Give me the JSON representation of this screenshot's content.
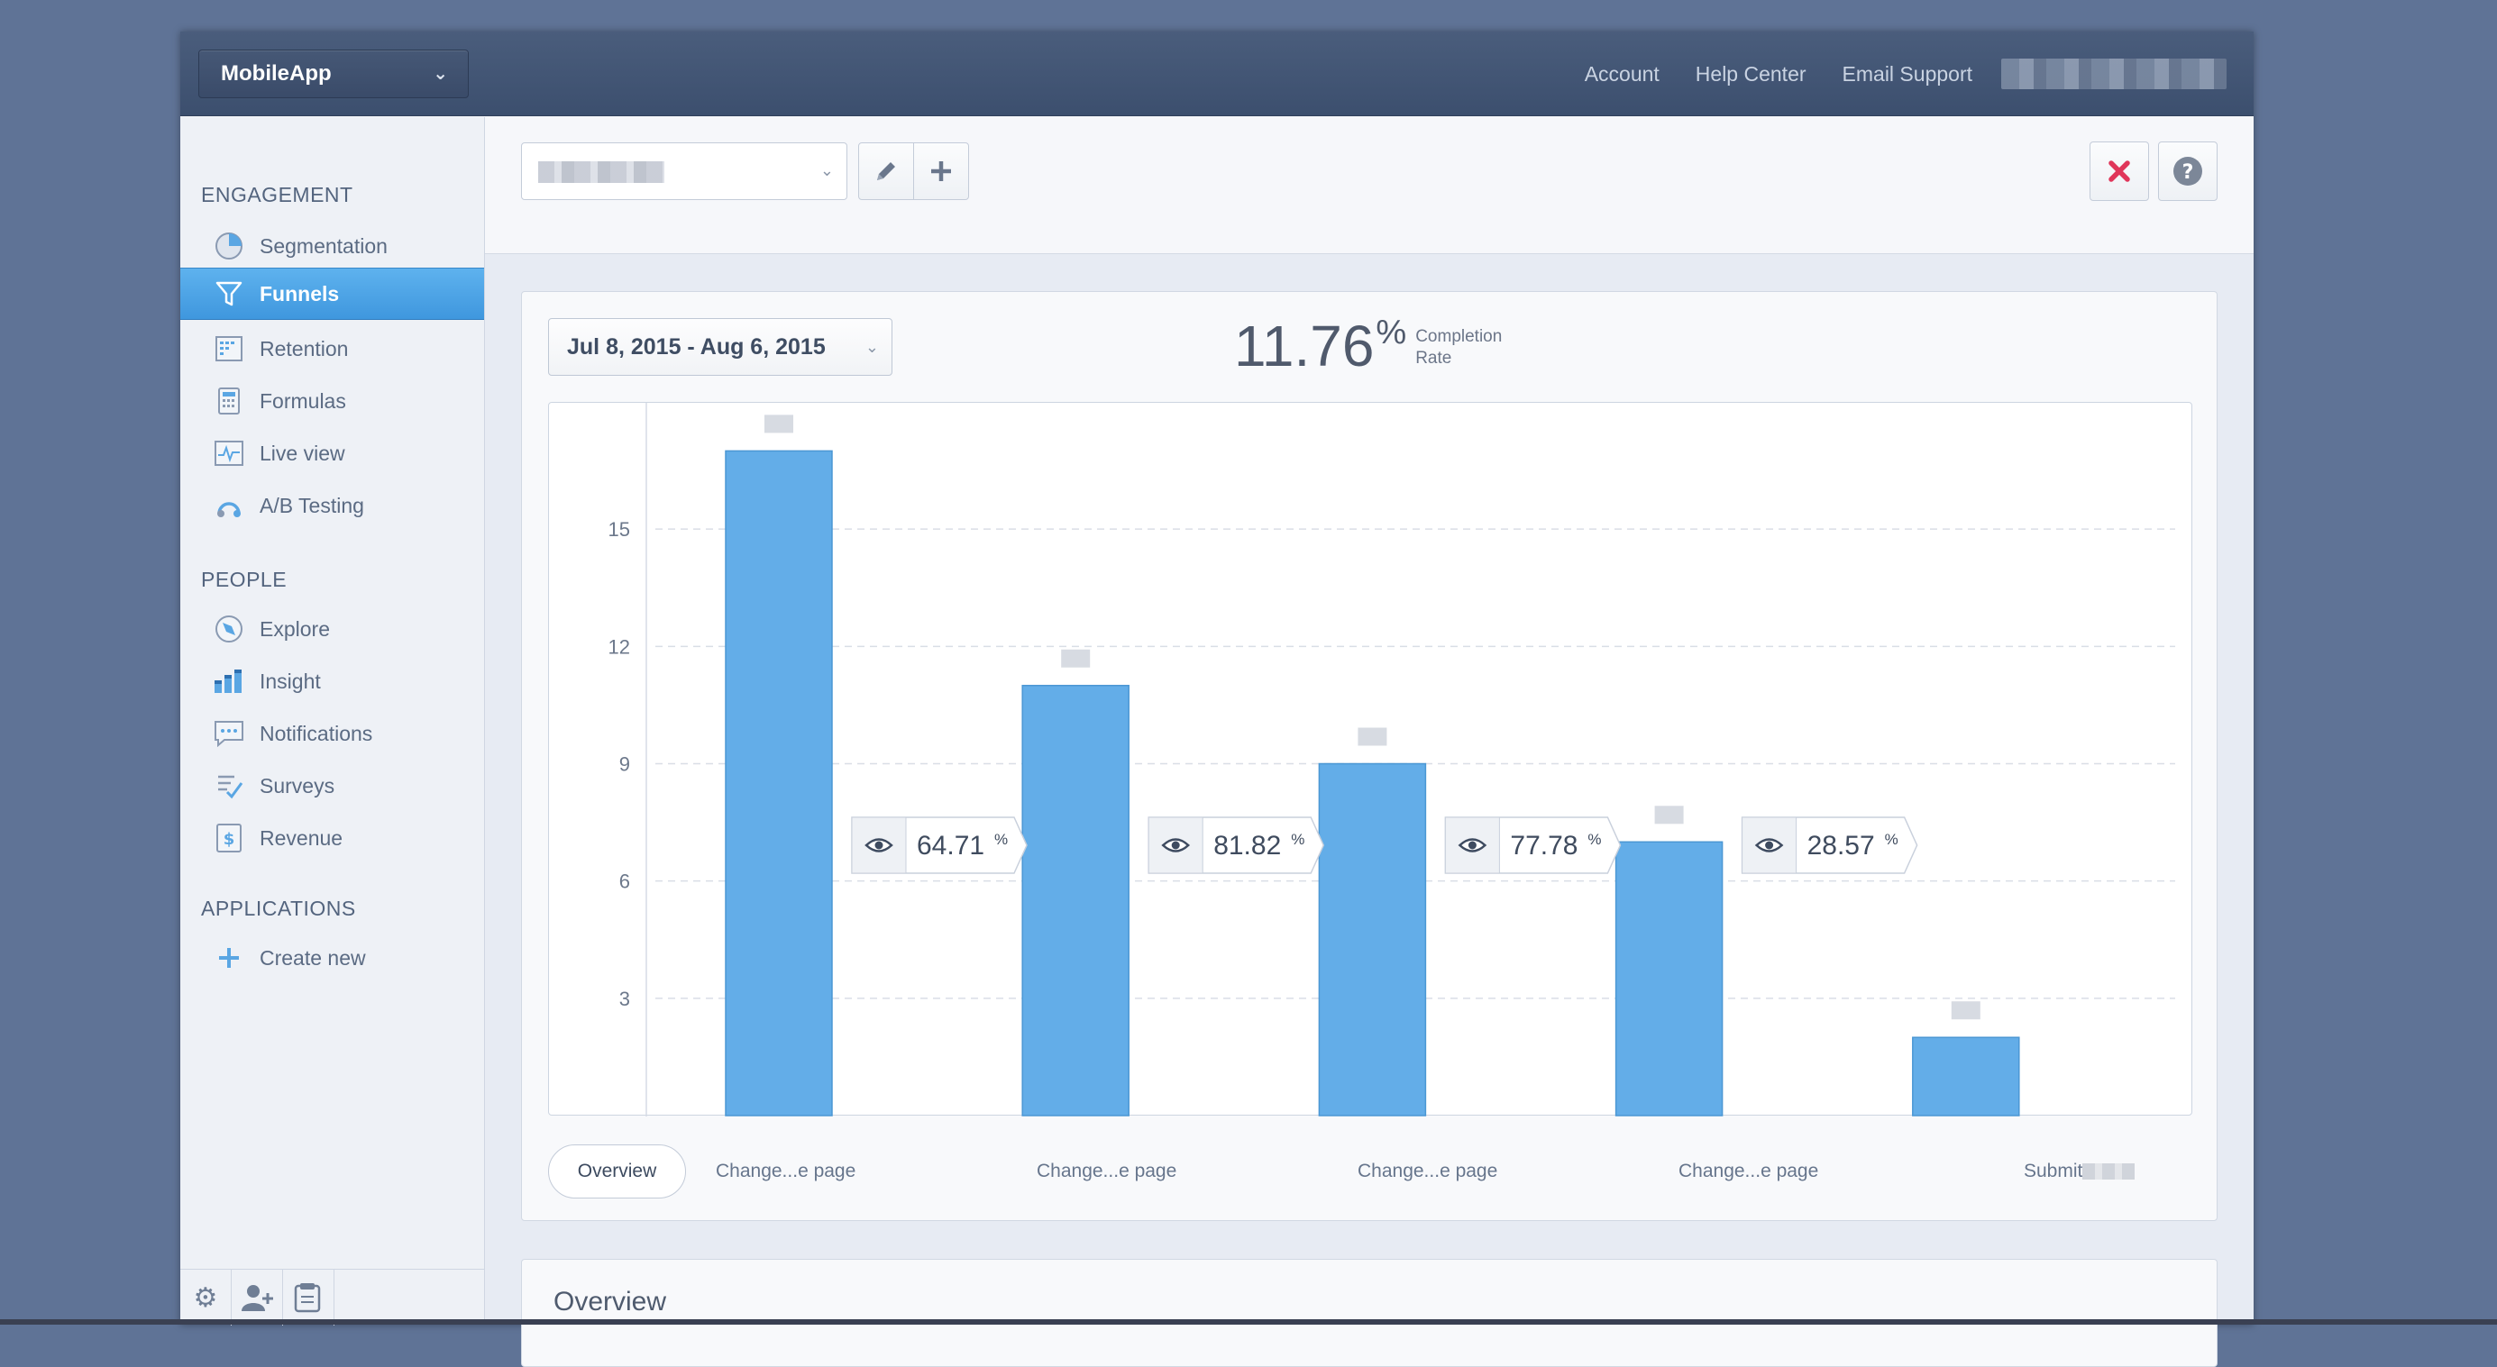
{
  "app_select": {
    "label": "MobileApp"
  },
  "top_links": [
    "Account",
    "Help Center",
    "Email Support"
  ],
  "sidebar": {
    "engagement_title": "ENGAGEMENT",
    "people_title": "PEOPLE",
    "applications_title": "APPLICATIONS",
    "items": [
      {
        "label": "Segmentation",
        "icon": "pie-chart-icon"
      },
      {
        "label": "Funnels",
        "icon": "funnel-icon"
      },
      {
        "label": "Retention",
        "icon": "retention-grid-icon"
      },
      {
        "label": "Formulas",
        "icon": "calculator-icon"
      },
      {
        "label": "Live view",
        "icon": "pulse-icon"
      },
      {
        "label": "A/B Testing",
        "icon": "ab-testing-icon"
      },
      {
        "label": "Explore",
        "icon": "compass-icon"
      },
      {
        "label": "Insight",
        "icon": "bars-icon"
      },
      {
        "label": "Notifications",
        "icon": "chat-bubble-icon"
      },
      {
        "label": "Surveys",
        "icon": "checklist-icon"
      },
      {
        "label": "Revenue",
        "icon": "dollar-icon"
      },
      {
        "label": "Create new",
        "icon": "plus-icon"
      }
    ],
    "active": "Funnels"
  },
  "date_range": "Jul 8, 2015 - Aug 6, 2015",
  "completion": {
    "value": "11.76",
    "unit": "%",
    "label_line1": "Completion",
    "label_line2": "Rate"
  },
  "overview_button": "Overview",
  "overview_section_title": "Overview",
  "colors": {
    "accent": "#5fabe8",
    "bar": "#63ade8",
    "close": "#e0365a"
  },
  "chart_data": {
    "type": "bar",
    "categories": [
      "Change...e page",
      "Change...e page",
      "Change...e page",
      "Change...e page",
      "Submit"
    ],
    "values": [
      17,
      11,
      9,
      7,
      2
    ],
    "conversion_labels": [
      "64.71",
      "81.82",
      "77.78",
      "28.57"
    ],
    "conversion_unit": "%",
    "ylim": [
      0,
      18
    ],
    "yticks": [
      "3",
      "6",
      "9",
      "12",
      "15"
    ],
    "ytick_values": [
      3,
      6,
      9,
      12,
      15
    ],
    "grid": true
  }
}
